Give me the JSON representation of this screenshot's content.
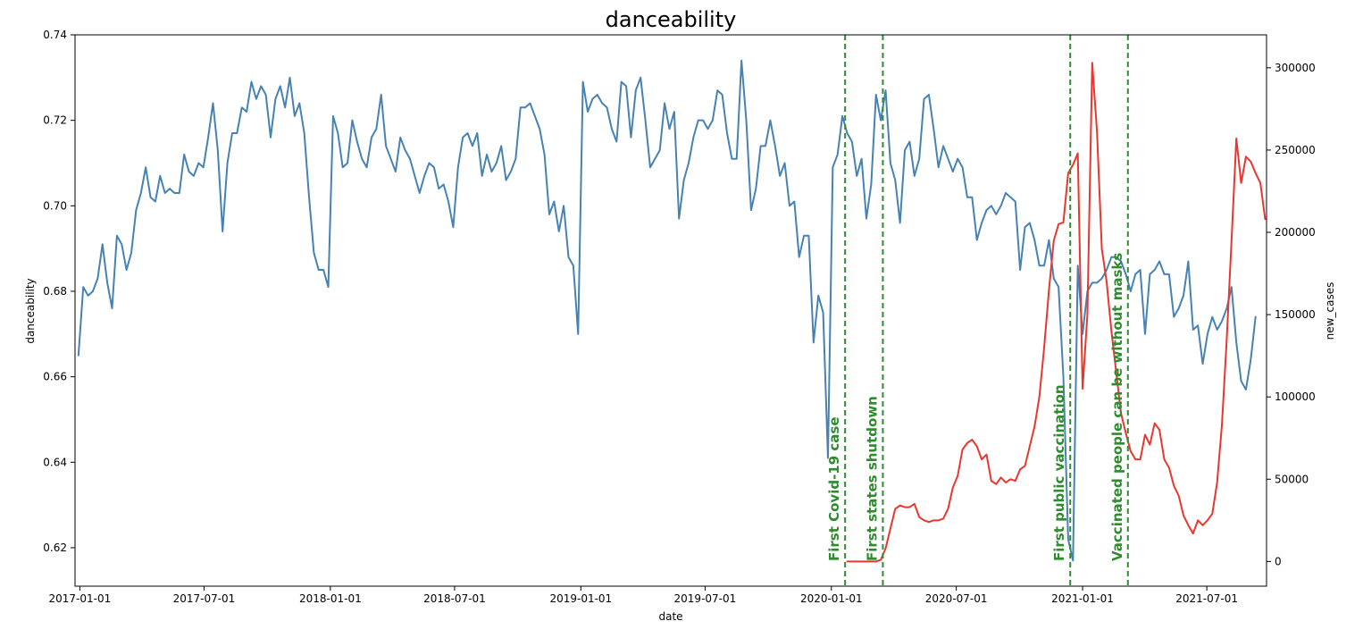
{
  "chart_data": {
    "type": "line",
    "title": "danceability",
    "xlabel": "date",
    "ylabel_left": "danceability",
    "ylabel_right": "new_cases",
    "xlim": [
      "2016-12-25",
      "2021-09-26"
    ],
    "ylim_left": [
      0.611,
      0.74
    ],
    "ylim_right": [
      -15000,
      320000
    ],
    "x_ticks": [
      "2017-01-01",
      "2017-07-01",
      "2018-01-01",
      "2018-07-01",
      "2019-01-01",
      "2019-07-01",
      "2020-01-01",
      "2020-07-01",
      "2021-01-01",
      "2021-07-01"
    ],
    "y_ticks_left": [
      "0.62",
      "0.64",
      "0.66",
      "0.68",
      "0.70",
      "0.72",
      "0.74"
    ],
    "y_ticks_left_values": [
      0.62,
      0.64,
      0.66,
      0.68,
      0.7,
      0.72,
      0.74
    ],
    "y_ticks_right": [
      "0",
      "50000",
      "100000",
      "150000",
      "200000",
      "250000",
      "300000"
    ],
    "y_ticks_right_values": [
      0,
      50000,
      100000,
      150000,
      200000,
      250000,
      300000
    ],
    "grid": false,
    "legend": "none",
    "colors": {
      "danceability": "#4682b4",
      "new_cases": "#e8372f",
      "annotation": "#2e8b2e"
    },
    "series": [
      {
        "axis": "left",
        "start": "2016-12-30",
        "step_days": 7,
        "values": [
          0.665,
          0.681,
          0.679,
          0.68,
          0.683,
          0.691,
          0.682,
          0.676,
          0.693,
          0.691,
          0.685,
          0.689,
          0.699,
          0.703,
          0.709,
          0.702,
          0.701,
          0.707,
          0.703,
          0.704,
          0.703,
          0.703,
          0.712,
          0.708,
          0.707,
          0.71,
          0.709,
          0.716,
          0.724,
          0.713,
          0.694,
          0.71,
          0.717,
          0.717,
          0.723,
          0.722,
          0.729,
          0.725,
          0.728,
          0.726,
          0.716,
          0.725,
          0.728,
          0.723,
          0.73,
          0.721,
          0.724,
          0.717,
          0.702,
          0.689,
          0.685,
          0.685,
          0.681,
          0.721,
          0.717,
          0.709,
          0.71,
          0.72,
          0.715,
          0.711,
          0.709,
          0.716,
          0.718,
          0.726,
          0.714,
          0.711,
          0.708,
          0.716,
          0.713,
          0.711,
          0.707,
          0.703,
          0.707,
          0.71,
          0.709,
          0.704,
          0.705,
          0.701,
          0.695,
          0.709,
          0.716,
          0.717,
          0.714,
          0.717,
          0.707,
          0.712,
          0.708,
          0.71,
          0.714,
          0.706,
          0.708,
          0.711,
          0.723,
          0.723,
          0.724,
          0.721,
          0.718,
          0.712,
          0.698,
          0.701,
          0.694,
          0.7,
          0.688,
          0.686,
          0.67,
          0.729,
          0.722,
          0.725,
          0.726,
          0.724,
          0.723,
          0.718,
          0.715,
          0.729,
          0.728,
          0.716,
          0.727,
          0.73,
          0.72,
          0.709,
          0.711,
          0.713,
          0.724,
          0.718,
          0.722,
          0.697,
          0.706,
          0.71,
          0.716,
          0.72,
          0.72,
          0.718,
          0.72,
          0.727,
          0.726,
          0.717,
          0.711,
          0.711,
          0.734,
          0.72,
          0.699,
          0.704,
          0.714,
          0.714,
          0.72,
          0.714,
          0.707,
          0.71,
          0.7,
          0.701,
          0.688,
          0.693,
          0.693,
          0.668,
          0.679,
          0.675,
          0.641,
          0.709,
          0.712,
          0.721,
          0.717,
          0.715,
          0.707,
          0.711,
          0.697,
          0.705,
          0.726,
          0.72,
          0.727,
          0.71,
          0.706,
          0.696,
          0.713,
          0.715,
          0.707,
          0.711,
          0.725,
          0.726,
          0.718,
          0.709,
          0.714,
          0.711,
          0.708,
          0.711,
          0.709,
          0.702,
          0.702,
          0.692,
          0.696,
          0.699,
          0.7,
          0.698,
          0.7,
          0.703,
          0.702,
          0.701,
          0.685,
          0.695,
          0.696,
          0.692,
          0.686,
          0.686,
          0.692,
          0.683,
          0.681,
          0.66,
          0.622,
          0.617,
          0.686,
          0.67,
          0.68,
          0.682,
          0.682,
          0.683,
          0.685,
          0.688,
          0.688,
          0.687,
          0.684,
          0.68,
          0.684,
          0.685,
          0.67,
          0.684,
          0.685,
          0.687,
          0.684,
          0.684,
          0.674,
          0.676,
          0.679,
          0.687,
          0.671,
          0.672,
          0.663,
          0.67,
          0.674,
          0.671,
          0.673,
          0.676,
          0.681,
          0.668,
          0.659,
          0.657,
          0.664,
          0.674
        ]
      },
      {
        "axis": "right",
        "start": "2020-01-24",
        "step_days": 7,
        "values": [
          0,
          0,
          0,
          0,
          0,
          0,
          0,
          1000,
          8000,
          20000,
          32000,
          34000,
          33000,
          33000,
          35000,
          27000,
          25000,
          24000,
          25000,
          25000,
          26000,
          32000,
          45000,
          52000,
          68000,
          72000,
          74000,
          70000,
          62000,
          65000,
          49000,
          47000,
          51000,
          48000,
          50000,
          49000,
          56000,
          58000,
          70000,
          82000,
          100000,
          130000,
          165000,
          195000,
          205000,
          206000,
          236000,
          241000,
          248000,
          105000,
          150000,
          303000,
          261000,
          190000,
          170000,
          140000,
          115000,
          90000,
          78000,
          67000,
          62000,
          62000,
          77000,
          71000,
          84000,
          80000,
          62000,
          57000,
          46000,
          40000,
          28000,
          22000,
          17000,
          25000,
          22000,
          25000,
          29000,
          48000,
          83000,
          135000,
          195000,
          257000,
          230000,
          246000,
          243000,
          236000,
          230000,
          208000
        ]
      }
    ],
    "annotations": [
      {
        "date": "2020-01-21",
        "label": "First Covid-19 case"
      },
      {
        "date": "2020-03-16",
        "label": "First states shutdown"
      },
      {
        "date": "2020-12-14",
        "label": "First public vaccination"
      },
      {
        "date": "2021-03-08",
        "label": "Vaccinated people can be without masks"
      }
    ]
  }
}
